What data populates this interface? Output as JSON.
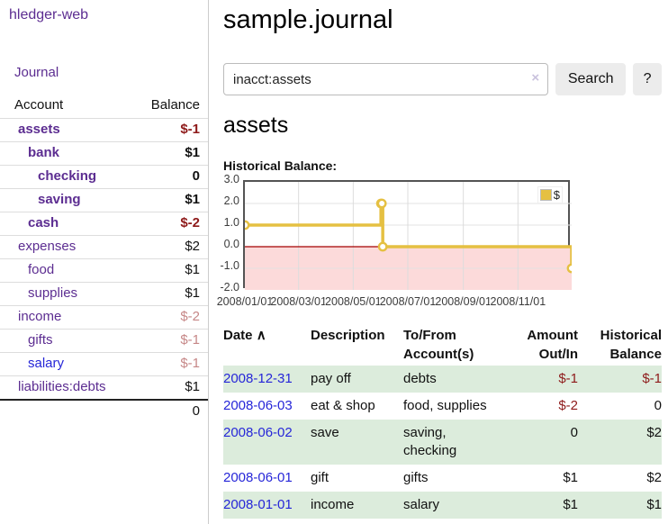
{
  "colors": {
    "link_purple": "#5c2d91",
    "link_blue": "#2626d8",
    "negative_dark": "#8e1a1a",
    "negative_light": "#c68787",
    "row_green": "#dcecdc",
    "chart_line_yellow": "#e5c042",
    "chart_negative_fill": "#fcdada",
    "chart_zero_line": "#a40000",
    "chart_border": "#545454"
  },
  "sidebar": {
    "brand": "hledger-web",
    "journal_link": "Journal",
    "accounts": {
      "headers": {
        "account": "Account",
        "balance": "Balance"
      },
      "rows": [
        {
          "name": "assets",
          "balance": "$-1"
        },
        {
          "name": "bank",
          "balance": "$1"
        },
        {
          "name": "checking",
          "balance": "0"
        },
        {
          "name": "saving",
          "balance": "$1"
        },
        {
          "name": "cash",
          "balance": "$-2"
        },
        {
          "name": "expenses",
          "balance": "$2"
        },
        {
          "name": "food",
          "balance": "$1"
        },
        {
          "name": "supplies",
          "balance": "$1"
        },
        {
          "name": "income",
          "balance": "$-2"
        },
        {
          "name": "gifts",
          "balance": "$-1"
        },
        {
          "name": "salary",
          "balance": "$-1"
        },
        {
          "name": "liabilities:debts",
          "balance": "$1"
        }
      ],
      "total": "0"
    }
  },
  "header": {
    "title": "sample.journal"
  },
  "search": {
    "value": "inacct:assets",
    "clear_icon": "×",
    "button_label": "Search",
    "help_label": "?"
  },
  "account_page": {
    "heading": "assets",
    "chart_title": "Historical Balance:"
  },
  "chart_data": {
    "type": "line",
    "step": true,
    "title": "Historical Balance:",
    "series": [
      {
        "name": "$",
        "points": [
          [
            "2008/01/01",
            1
          ],
          [
            "2008/06/01",
            2
          ],
          [
            "2008/06/02",
            2
          ],
          [
            "2008/06/03",
            0
          ],
          [
            "2008/12/31",
            -1
          ]
        ]
      }
    ],
    "xlim": [
      "2008/01/01",
      "2008/12/31"
    ],
    "ylim": [
      -2,
      3
    ],
    "yticks": [
      "3.0",
      "2.0",
      "1.0",
      "0.0",
      "-1.0",
      "-2.0"
    ],
    "xticks": [
      "2008/01/01",
      "2008/03/01",
      "2008/05/01",
      "2008/07/01",
      "2008/09/01",
      "2008/11/01"
    ],
    "legend": "$",
    "legend_position": "top-right",
    "grid": true
  },
  "register": {
    "headers": {
      "date": "Date",
      "sort_icon": "∧",
      "description": "Description",
      "accounts": "To/From Account(s)",
      "amount": "Amount Out/In",
      "balance": "Historical Balance"
    },
    "rows": [
      {
        "date": "2008-12-31",
        "description": "pay off",
        "accounts": "debts",
        "amount": "$-1",
        "balance": "$-1"
      },
      {
        "date": "2008-06-03",
        "description": "eat & shop",
        "accounts": "food, supplies",
        "amount": "$-2",
        "balance": "0"
      },
      {
        "date": "2008-06-02",
        "description": "save",
        "accounts": "saving, checking",
        "amount": "0",
        "balance": "$2"
      },
      {
        "date": "2008-06-01",
        "description": "gift",
        "accounts": "gifts",
        "amount": "$1",
        "balance": "$2"
      },
      {
        "date": "2008-01-01",
        "description": "income",
        "accounts": "salary",
        "amount": "$1",
        "balance": "$1"
      }
    ]
  }
}
